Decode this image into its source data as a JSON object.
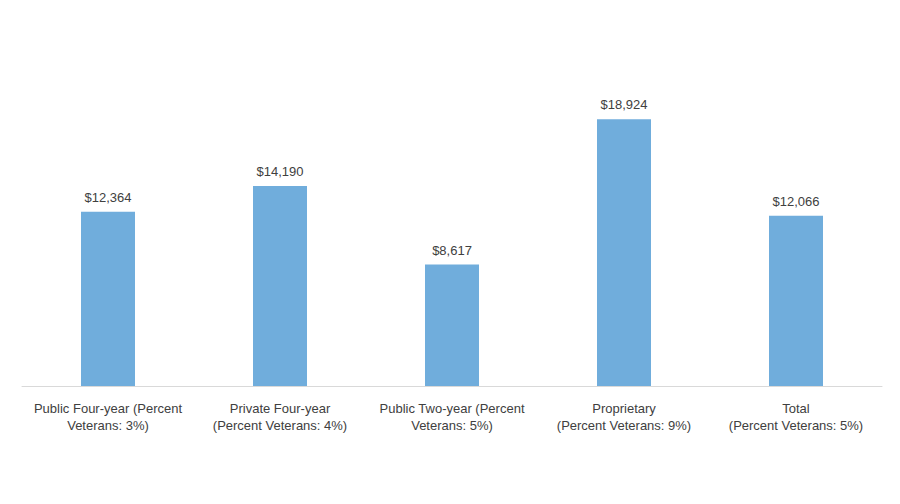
{
  "chart_data": {
    "type": "bar",
    "categories": [
      "Public Four-year (Percent\nVeterans: 3%)",
      "Private Four-year\n(Percent Veterans: 4%)",
      "Public Two-year (Percent\nVeterans: 5%)",
      "Proprietary\n(Percent Veterans: 9%)",
      "Total\n(Percent Veterans: 5%)"
    ],
    "values": [
      12364,
      14190,
      8617,
      18924,
      12066
    ],
    "value_labels": [
      "$12,364",
      "$14,190",
      "$8,617",
      "$18,924",
      "$12,066"
    ],
    "color": "#70addc",
    "ylim": [
      0,
      20000
    ],
    "grid": false,
    "data_labels": true,
    "tick_labels": "x"
  }
}
